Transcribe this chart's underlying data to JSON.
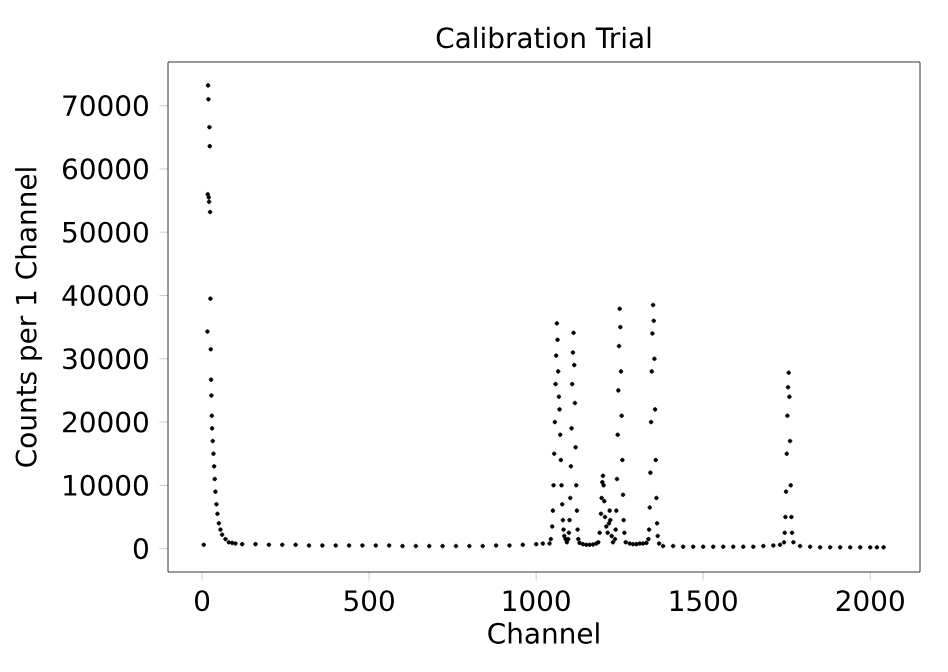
{
  "chart_data": {
    "type": "scatter",
    "title": "Calibration Trial",
    "xlabel": "Channel",
    "ylabel": "Counts per 1 Channel",
    "marker": "circle",
    "xlim": [
      -102,
      2149
    ],
    "ylim": [
      -3700,
      76900
    ],
    "xticks": [
      0,
      500,
      1000,
      1500,
      2000
    ],
    "yticks": [
      0,
      10000,
      20000,
      30000,
      40000,
      50000,
      60000,
      70000
    ],
    "series": [
      {
        "color": "#000000",
        "x": [
          5,
          16,
          17,
          18,
          19,
          20,
          21,
          22,
          23,
          24,
          25,
          26,
          27,
          28,
          29,
          30,
          32,
          34,
          36,
          38,
          40,
          43,
          46,
          50,
          55,
          60,
          70,
          80,
          90,
          100,
          120,
          160,
          200,
          240,
          280,
          320,
          360,
          400,
          440,
          480,
          520,
          560,
          600,
          640,
          680,
          720,
          760,
          800,
          840,
          880,
          920,
          960,
          1000,
          1020,
          1040,
          1044,
          1048,
          1050,
          1052,
          1054,
          1056,
          1058,
          1060,
          1062,
          1064,
          1066,
          1068,
          1070,
          1072,
          1074,
          1076,
          1078,
          1080,
          1082,
          1084,
          1088,
          1092,
          1096,
          1098,
          1100,
          1102,
          1104,
          1106,
          1108,
          1110,
          1112,
          1114,
          1116,
          1118,
          1120,
          1122,
          1124,
          1126,
          1130,
          1140,
          1150,
          1160,
          1170,
          1180,
          1186,
          1190,
          1194,
          1196,
          1198,
          1200,
          1202,
          1204,
          1206,
          1210,
          1214,
          1218,
          1220,
          1222,
          1226,
          1230,
          1236,
          1238,
          1240,
          1242,
          1244,
          1246,
          1248,
          1250,
          1252,
          1254,
          1256,
          1258,
          1260,
          1262,
          1264,
          1268,
          1280,
          1290,
          1300,
          1310,
          1320,
          1330,
          1336,
          1338,
          1340,
          1342,
          1344,
          1346,
          1348,
          1350,
          1352,
          1354,
          1356,
          1358,
          1360,
          1362,
          1364,
          1368,
          1380,
          1410,
          1440,
          1470,
          1500,
          1530,
          1560,
          1590,
          1620,
          1650,
          1680,
          1710,
          1730,
          1742,
          1744,
          1746,
          1748,
          1750,
          1752,
          1754,
          1756,
          1758,
          1760,
          1762,
          1764,
          1766,
          1770,
          1790,
          1820,
          1850,
          1880,
          1910,
          1940,
          1970,
          2000,
          2020,
          2040
        ],
        "values": [
          600,
          34300,
          56000,
          73200,
          71000,
          55500,
          54800,
          66600,
          63600,
          53200,
          39500,
          31500,
          26700,
          24200,
          21000,
          19000,
          17000,
          15000,
          13000,
          11000,
          9000,
          7000,
          5500,
          4000,
          3000,
          2200,
          1500,
          1000,
          900,
          800,
          700,
          700,
          600,
          600,
          600,
          500,
          500,
          500,
          500,
          500,
          500,
          500,
          400,
          400,
          400,
          400,
          400,
          400,
          400,
          500,
          500,
          600,
          700,
          800,
          800,
          1500,
          3500,
          6000,
          10000,
          15000,
          20000,
          26000,
          30500,
          35600,
          33000,
          28000,
          24000,
          22000,
          18000,
          14000,
          10000,
          7000,
          4500,
          3000,
          2000,
          1500,
          1000,
          1500,
          2500,
          4500,
          8000,
          13000,
          19000,
          26000,
          31000,
          34100,
          29000,
          23000,
          16000,
          10000,
          6000,
          3000,
          1500,
          900,
          700,
          600,
          600,
          650,
          800,
          1000,
          2500,
          5500,
          8000,
          10500,
          11500,
          10000,
          7500,
          5000,
          3500,
          2500,
          4000,
          6000,
          4500,
          2000,
          1000,
          1500,
          3000,
          6000,
          11000,
          18000,
          25000,
          32000,
          37900,
          35000,
          28000,
          21000,
          14000,
          8500,
          4500,
          2500,
          1000,
          800,
          700,
          700,
          800,
          800,
          900,
          1500,
          3000,
          6500,
          12000,
          20000,
          28000,
          34000,
          38500,
          36000,
          30000,
          22000,
          14000,
          8000,
          4000,
          2000,
          800,
          400,
          400,
          300,
          300,
          300,
          300,
          300,
          300,
          300,
          300,
          400,
          500,
          600,
          1000,
          2500,
          5000,
          9000,
          15000,
          21000,
          25500,
          27800,
          24000,
          17000,
          10000,
          5000,
          2500,
          1000,
          400,
          300,
          200,
          200,
          200,
          200,
          200,
          200,
          200,
          200
        ]
      }
    ]
  }
}
